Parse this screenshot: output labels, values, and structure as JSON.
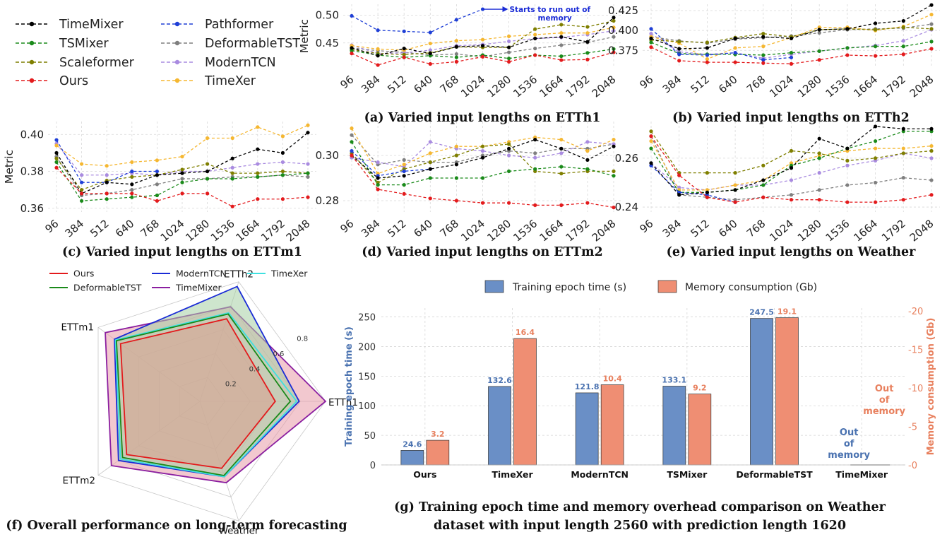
{
  "legend_top": [
    {
      "name": "TimeMixer",
      "color": "#000000"
    },
    {
      "name": "TSMixer",
      "color": "#1a8a1a"
    },
    {
      "name": "Scaleformer",
      "color": "#7f7f00"
    },
    {
      "name": "Ours",
      "color": "#e31a1c"
    },
    {
      "name": "Pathformer",
      "color": "#1f3fd6"
    },
    {
      "name": "DeformableTST",
      "color": "#7f7f7f"
    },
    {
      "name": "ModernTCN",
      "color": "#a98be0"
    },
    {
      "name": "TimeXer",
      "color": "#f5b731"
    }
  ],
  "chart_data": [
    {
      "type": "line",
      "id": "a",
      "caption": "(a) Varied input lengths on ETTh1",
      "ylabel": "Metric",
      "categories": [
        "96",
        "384",
        "512",
        "640",
        "768",
        "1024",
        "1280",
        "1536",
        "1664",
        "1792",
        "2048"
      ],
      "ylim": [
        0.405,
        0.52
      ],
      "yticks": [
        "0.45",
        "0.50"
      ],
      "yticks_values": [
        0.45,
        0.5
      ],
      "annotation": {
        "text": "Starts to run out of",
        "text2": "memory",
        "color": "#1a2bd6"
      },
      "series": [
        {
          "name": "TimeMixer",
          "values": [
            0.441,
            0.427,
            0.44,
            0.431,
            0.443,
            0.445,
            0.442,
            0.458,
            0.461,
            0.452,
            0.496
          ]
        },
        {
          "name": "TSMixer",
          "values": [
            0.436,
            0.428,
            0.424,
            0.427,
            0.424,
            0.428,
            0.422,
            0.428,
            0.426,
            0.432,
            0.439
          ]
        },
        {
          "name": "Scaleformer",
          "values": [
            0.438,
            0.431,
            0.429,
            0.432,
            0.443,
            0.442,
            0.442,
            0.475,
            0.483,
            0.479,
            0.49
          ]
        },
        {
          "name": "Ours",
          "values": [
            0.431,
            0.41,
            0.424,
            0.412,
            0.416,
            0.425,
            0.416,
            0.428,
            0.419,
            0.42,
            0.433
          ]
        },
        {
          "name": "Pathformer",
          "values": [
            0.499,
            0.473,
            0.471,
            0.469,
            0.492,
            0.511,
            null,
            null,
            null,
            null,
            null
          ]
        },
        {
          "name": "DeformableTST",
          "values": [
            0.441,
            0.436,
            0.433,
            0.428,
            0.43,
            0.425,
            0.433,
            0.44,
            0.446,
            0.451,
            0.461
          ]
        },
        {
          "name": "ModernTCN",
          "values": [
            0.446,
            0.431,
            0.432,
            0.437,
            0.445,
            0.447,
            0.453,
            0.458,
            0.46,
            0.465,
            0.472
          ]
        },
        {
          "name": "TimeXer",
          "values": [
            0.445,
            0.439,
            0.437,
            0.449,
            0.454,
            0.456,
            0.462,
            0.465,
            0.468,
            0.468,
            0.478
          ]
        }
      ]
    },
    {
      "type": "line",
      "id": "b",
      "caption": "(b) Varied input lengths on ETTh2",
      "ylabel": "",
      "categories": [
        "96",
        "384",
        "512",
        "640",
        "768",
        "1024",
        "1280",
        "1536",
        "1664",
        "1792",
        "2048"
      ],
      "ylim": [
        0.353,
        0.433
      ],
      "yticks": [
        "0.375",
        "0.400",
        "0.425"
      ],
      "yticks_values": [
        0.375,
        0.4,
        0.425
      ],
      "series": [
        {
          "name": "TimeMixer",
          "values": [
            0.39,
            0.377,
            0.378,
            0.39,
            0.392,
            0.39,
            0.401,
            0.402,
            0.409,
            0.412,
            0.432
          ]
        },
        {
          "name": "TSMixer",
          "values": [
            0.385,
            0.371,
            0.37,
            0.37,
            0.369,
            0.372,
            0.374,
            0.378,
            0.38,
            0.38,
            0.386
          ]
        },
        {
          "name": "Scaleformer",
          "values": [
            0.388,
            0.386,
            0.385,
            0.391,
            0.396,
            0.392,
            0.401,
            0.402,
            0.401,
            0.404,
            0.402
          ]
        },
        {
          "name": "Ours",
          "values": [
            0.379,
            0.362,
            0.36,
            0.36,
            0.359,
            0.358,
            0.363,
            0.369,
            0.368,
            0.37,
            0.377
          ]
        },
        {
          "name": "Pathformer",
          "values": [
            0.402,
            0.37,
            0.369,
            0.372,
            0.363,
            0.366,
            null,
            null,
            null,
            null,
            null
          ]
        },
        {
          "name": "DeformableTST",
          "values": [
            0.392,
            0.387,
            0.384,
            0.389,
            0.391,
            0.393,
            0.397,
            0.401,
            0.402,
            0.403,
            0.408
          ]
        },
        {
          "name": "ModernTCN",
          "values": [
            0.396,
            0.373,
            0.37,
            0.372,
            0.365,
            0.37,
            0.374,
            0.378,
            0.381,
            0.387,
            0.401
          ]
        },
        {
          "name": "TimeXer",
          "values": [
            0.392,
            0.384,
            0.364,
            0.378,
            0.38,
            0.391,
            0.404,
            0.404,
            0.4,
            0.405,
            0.42
          ]
        }
      ]
    },
    {
      "type": "line",
      "id": "c",
      "caption": "(c) Varied input lengths on ETTm1",
      "ylabel": "Metric",
      "categories": [
        "96",
        "384",
        "512",
        "640",
        "768",
        "1024",
        "1280",
        "1536",
        "1664",
        "1792",
        "2048"
      ],
      "ylim": [
        0.358,
        0.407
      ],
      "yticks": [
        "0.36",
        "0.38",
        "0.40"
      ],
      "yticks_values": [
        0.36,
        0.38,
        0.4
      ],
      "series": [
        {
          "name": "TimeMixer",
          "values": [
            0.39,
            0.368,
            0.374,
            0.373,
            0.378,
            0.379,
            0.38,
            0.387,
            0.392,
            0.39,
            0.401
          ]
        },
        {
          "name": "TSMixer",
          "values": [
            0.385,
            0.364,
            0.365,
            0.366,
            0.367,
            0.374,
            0.376,
            0.376,
            0.377,
            0.378,
            0.379
          ]
        },
        {
          "name": "Scaleformer",
          "values": [
            0.387,
            0.37,
            0.375,
            0.377,
            0.378,
            0.381,
            0.384,
            0.379,
            0.379,
            0.38,
            0.379
          ]
        },
        {
          "name": "Ours",
          "values": [
            0.382,
            0.368,
            0.368,
            0.368,
            0.364,
            0.368,
            0.368,
            0.361,
            0.365,
            0.365,
            0.366
          ]
        },
        {
          "name": "Pathformer",
          "values": [
            0.397,
            0.374,
            0.374,
            0.38,
            0.38,
            null,
            null,
            null,
            null,
            null,
            null
          ]
        },
        {
          "name": "DeformableTST",
          "values": [
            0.388,
            0.367,
            0.368,
            0.37,
            0.373,
            0.376,
            0.376,
            0.377,
            0.377,
            0.378,
            0.377
          ]
        },
        {
          "name": "ModernTCN",
          "values": [
            0.395,
            0.378,
            0.378,
            0.379,
            0.378,
            0.38,
            0.38,
            0.382,
            0.384,
            0.385,
            0.384
          ]
        },
        {
          "name": "TimeXer",
          "values": [
            0.394,
            0.384,
            0.383,
            0.385,
            0.386,
            0.388,
            0.398,
            0.398,
            0.404,
            0.399,
            0.405
          ]
        }
      ]
    },
    {
      "type": "line",
      "id": "d",
      "caption": "(d) Varied input lengths on ETTm2",
      "ylabel": "",
      "categories": [
        "96",
        "384",
        "512",
        "640",
        "768",
        "1024",
        "1280",
        "1536",
        "1664",
        "1792",
        "2048"
      ],
      "ylim": [
        0.275,
        0.315
      ],
      "yticks": [
        "0.28",
        "0.30"
      ],
      "yticks_values": [
        0.28,
        0.3
      ],
      "series": [
        {
          "name": "TimeMixer",
          "values": [
            0.3,
            0.29,
            0.291,
            0.294,
            0.296,
            0.299,
            0.303,
            0.307,
            0.303,
            0.298,
            0.304
          ]
        },
        {
          "name": "TSMixer",
          "values": [
            0.306,
            0.287,
            0.287,
            0.29,
            0.29,
            0.29,
            0.293,
            0.294,
            0.295,
            0.294,
            0.291
          ]
        },
        {
          "name": "Scaleformer",
          "values": [
            0.301,
            0.288,
            0.294,
            0.297,
            0.3,
            0.304,
            0.305,
            0.293,
            0.292,
            0.293,
            0.293
          ]
        },
        {
          "name": "Ours",
          "values": [
            0.3,
            0.285,
            0.283,
            0.281,
            0.28,
            0.279,
            0.279,
            0.278,
            0.278,
            0.279,
            0.277
          ]
        },
        {
          "name": "Pathformer",
          "values": [
            0.302,
            0.291,
            0.293,
            0.294,
            null,
            null,
            null,
            null,
            null,
            null,
            null
          ]
        },
        {
          "name": "DeformableTST",
          "values": [
            0.309,
            0.296,
            0.298,
            0.297,
            0.297,
            0.3,
            0.302,
            0.301,
            0.303,
            0.303,
            0.305
          ]
        },
        {
          "name": "ModernTCN",
          "values": [
            0.299,
            0.297,
            0.295,
            0.306,
            0.303,
            0.302,
            0.3,
            0.299,
            0.301,
            0.306,
            0.305
          ]
        },
        {
          "name": "TimeXer",
          "values": [
            0.312,
            0.292,
            0.296,
            0.301,
            0.304,
            0.304,
            0.306,
            0.308,
            0.307,
            0.302,
            0.307
          ]
        }
      ]
    },
    {
      "type": "line",
      "id": "e",
      "caption": "(e) Varied input lengths on Weather",
      "ylabel": "",
      "categories": [
        "96",
        "384",
        "512",
        "640",
        "768",
        "1024",
        "1280",
        "1536",
        "1664",
        "1792",
        "2048"
      ],
      "ylim": [
        0.238,
        0.275
      ],
      "yticks": [
        "0.24",
        "0.26"
      ],
      "yticks_values": [
        0.24,
        0.26
      ],
      "series": [
        {
          "name": "TimeMixer",
          "values": [
            0.258,
            0.245,
            0.246,
            0.247,
            0.251,
            0.256,
            0.268,
            0.264,
            0.273,
            0.272,
            0.272
          ]
        },
        {
          "name": "TSMixer",
          "values": [
            0.264,
            0.246,
            0.246,
            0.247,
            0.249,
            0.257,
            0.26,
            0.264,
            0.267,
            0.271,
            0.271
          ]
        },
        {
          "name": "Scaleformer",
          "values": [
            0.271,
            0.254,
            0.254,
            0.254,
            0.257,
            0.263,
            0.262,
            0.259,
            0.26,
            0.262,
            0.263
          ]
        },
        {
          "name": "Ours",
          "values": [
            0.269,
            0.253,
            0.244,
            0.242,
            0.244,
            0.243,
            0.243,
            0.242,
            0.242,
            0.243,
            0.245
          ]
        },
        {
          "name": "Pathformer",
          "values": [
            0.257,
            0.246,
            0.245,
            0.242,
            null,
            null,
            null,
            null,
            null,
            null,
            null
          ]
        },
        {
          "name": "DeformableTST",
          "values": [
            0.269,
            0.245,
            0.244,
            0.243,
            0.244,
            0.245,
            0.247,
            0.249,
            0.25,
            0.252,
            0.251
          ]
        },
        {
          "name": "ModernTCN",
          "values": [
            0.258,
            0.248,
            0.247,
            0.249,
            0.249,
            0.251,
            0.254,
            0.257,
            0.259,
            0.262,
            0.26
          ]
        },
        {
          "name": "TimeXer",
          "values": [
            0.267,
            0.247,
            0.247,
            0.249,
            0.251,
            0.258,
            0.261,
            0.263,
            0.264,
            0.264,
            0.265
          ]
        }
      ]
    },
    {
      "type": "radar",
      "id": "f",
      "caption": "(f) Overall performance on long-term forecasting",
      "axes": [
        "ETTh2",
        "ETTh1",
        "Weather",
        "ETTm2",
        "ETTm1"
      ],
      "rlabels": [
        "0.2",
        "0.4",
        "0.6",
        "0.8"
      ],
      "rticks": [
        0.2,
        0.4,
        0.6,
        0.8
      ],
      "rmax": 1.0,
      "legend": [
        "Ours",
        "ModernTCN",
        "TimeXer",
        "DeformableTST",
        "TimeMixer"
      ],
      "series": [
        {
          "name": "TimeMixer",
          "color": "#8b1fa0",
          "fill": "#e89aa8",
          "values": [
            0.79,
            1.0,
            0.68,
            0.87,
            0.93
          ]
        },
        {
          "name": "ModernTCN",
          "color": "#1a2bd6",
          "fill": "#a6cfa4",
          "values": [
            0.96,
            0.79,
            0.63,
            0.8,
            0.84
          ]
        },
        {
          "name": "TimeXer",
          "color": "#3fe0e0",
          "fill": "none",
          "values": [
            0.74,
            0.77,
            0.63,
            0.78,
            0.83
          ]
        },
        {
          "name": "DeformableTST",
          "color": "#1a8a1a",
          "fill": "none",
          "values": [
            0.73,
            0.72,
            0.62,
            0.76,
            0.82
          ]
        },
        {
          "name": "Ours",
          "color": "#e31a1c",
          "fill": "#d9a08f",
          "values": [
            0.69,
            0.6,
            0.56,
            0.72,
            0.78
          ]
        }
      ]
    },
    {
      "type": "bar",
      "id": "g",
      "caption_line1": "(g) Training epoch time and memory overhead comparison on Weather",
      "caption_line2": "dataset with input length  2560 with prediction length 1620",
      "categories": [
        "Ours",
        "TimeXer",
        "ModernTCN",
        "TSMixer",
        "DeformableTST",
        "TimeMixer"
      ],
      "ylabel_left": "Training epoch time (s)",
      "ylabel_right": "Memory consumption (Gb)",
      "ylim_left": [
        0,
        265
      ],
      "ylim_right": [
        0,
        20.35
      ],
      "yticks_left": [
        0,
        50,
        100,
        150,
        200,
        250
      ],
      "yticks_right": [
        0,
        5,
        10,
        15,
        20
      ],
      "series": [
        {
          "name": "Training epoch time (s)",
          "color": "#6a8fc6",
          "label_color": "#4a72b0",
          "values": [
            24.6,
            132.6,
            121.8,
            133.1,
            247.5,
            null
          ],
          "labels": [
            "24.6",
            "132.6",
            "121.8",
            "133.1",
            "247.5",
            "Out\nof\nmemory"
          ]
        },
        {
          "name": "Memory consumption (Gb)",
          "color": "#ef8e73",
          "label_color": "#e8805e",
          "values": [
            3.2,
            16.4,
            10.4,
            9.2,
            19.1,
            null
          ],
          "labels": [
            "3.2",
            "16.4",
            "10.4",
            "9.2",
            "19.1",
            "Out\nof\nmemory"
          ]
        }
      ]
    }
  ]
}
